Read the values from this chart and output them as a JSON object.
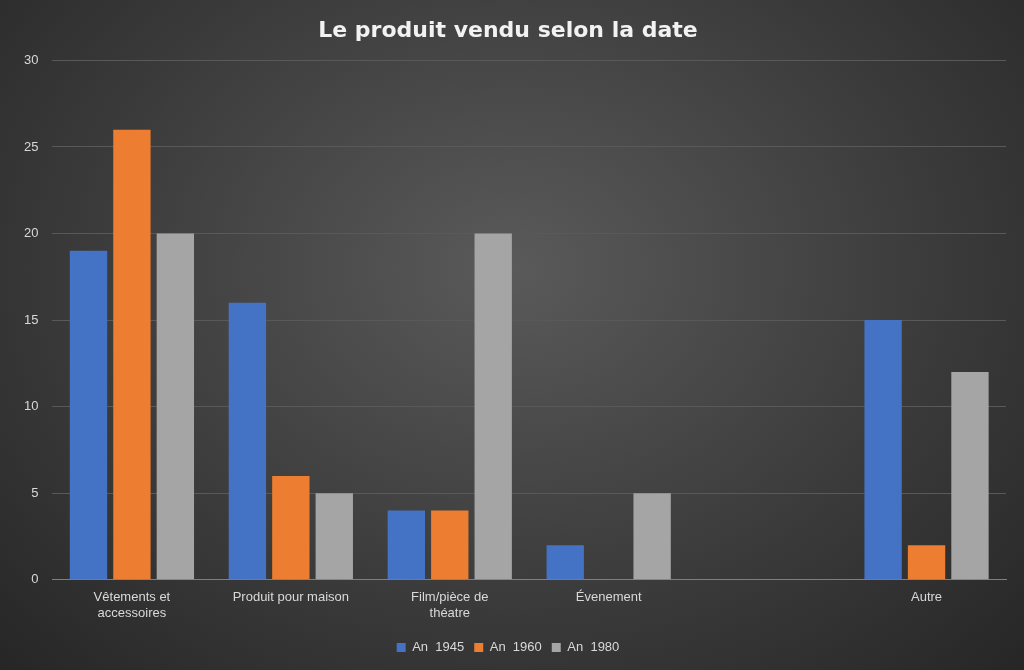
{
  "chart_data": {
    "type": "bar",
    "title": "Le produit vendu selon la date",
    "categories": [
      "Vêtements et accessoires",
      "Produit pour maison",
      "Film/pièce de théatre",
      "Évenement",
      null,
      "Autre"
    ],
    "series": [
      {
        "name": "An  1945",
        "color": "#4472c4",
        "values": [
          19,
          16,
          4,
          2,
          null,
          15
        ]
      },
      {
        "name": "An  1960",
        "color": "#ed7d31",
        "values": [
          26,
          6,
          4,
          null,
          null,
          2
        ]
      },
      {
        "name": "An  1980",
        "color": "#a5a5a5",
        "values": [
          20,
          5,
          20,
          5,
          null,
          12
        ]
      }
    ],
    "ylim": [
      0,
      30
    ],
    "yticks": [
      0,
      5,
      10,
      15,
      20,
      25,
      30
    ],
    "grid": "y",
    "legend": "bottom"
  }
}
